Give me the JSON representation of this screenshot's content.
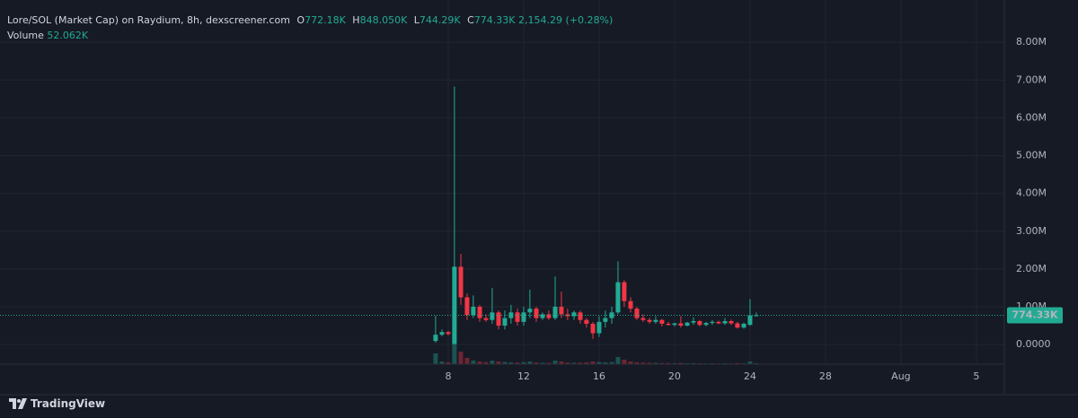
{
  "chart_data": {
    "type": "candlestick",
    "title": "Lore/SOL (Market Cap) on Raydium, 8h, dexscreener.com",
    "ohlc_keys": [
      "O",
      "H",
      "L",
      "C"
    ],
    "ohlc_labels": [
      "772.18K",
      "848.050K",
      "744.29K",
      "774.33K"
    ],
    "change_label": "2,154.29 (+0.28%)",
    "volume_name": "Volume",
    "volume_label": "52.062K",
    "last_price_label": "774.33K",
    "watermark": "TradingView",
    "up_color": "#22ab94",
    "down_color": "#f23645",
    "grid": true,
    "xlim": [
      -15.76,
      37.48
    ],
    "xticks": [
      8,
      12,
      16,
      20,
      24,
      28,
      {
        "value": 32,
        "label": "Aug"
      },
      {
        "value": 36,
        "label": "5"
      }
    ],
    "ylim": [
      -520000,
      9120000
    ],
    "yticks": [
      {
        "value": 0,
        "label": "0.0000"
      },
      {
        "value": 1000000,
        "label": "1.00M"
      },
      {
        "value": 2000000,
        "label": "2.00M"
      },
      {
        "value": 3000000,
        "label": "3.00M"
      },
      {
        "value": 4000000,
        "label": "4.00M"
      },
      {
        "value": 5000000,
        "label": "5.00M"
      },
      {
        "value": 6000000,
        "label": "6.00M"
      },
      {
        "value": 7000000,
        "label": "7.00M"
      },
      {
        "value": 8000000,
        "label": "8.00M"
      }
    ],
    "volume_ylim": [
      0,
      4000000
    ],
    "x": [
      7.33,
      7.67,
      8,
      8.33,
      8.67,
      9,
      9.33,
      9.67,
      10,
      10.33,
      10.67,
      11,
      11.33,
      11.67,
      12,
      12.33,
      12.67,
      13,
      13.33,
      13.67,
      14,
      14.33,
      14.67,
      15,
      15.33,
      15.67,
      16,
      16.33,
      16.67,
      17,
      17.33,
      17.67,
      18,
      18.33,
      18.67,
      19,
      19.33,
      19.67,
      20,
      20.33,
      20.67,
      21,
      21.33,
      21.67,
      22,
      22.33,
      22.67,
      23,
      23.33,
      23.67,
      24,
      24.33
    ],
    "open": [
      95000,
      260000,
      330000,
      20000,
      2060000,
      1250000,
      780000,
      1000000,
      700000,
      650000,
      850000,
      500000,
      700000,
      850000,
      600000,
      850000,
      950000,
      700000,
      800000,
      700000,
      1000000,
      800000,
      750000,
      850000,
      650000,
      550000,
      300000,
      600000,
      700000,
      850000,
      1650000,
      1150000,
      950000,
      700000,
      650000,
      600000,
      650000,
      550000,
      520000,
      560000,
      500000,
      580000,
      620000,
      520000,
      570000,
      600000,
      560000,
      620000,
      560000,
      450000,
      520000,
      772180
    ],
    "high": [
      760000,
      400000,
      360000,
      6830000,
      2400000,
      1350000,
      1300000,
      1050000,
      800000,
      1500000,
      900000,
      900000,
      1050000,
      950000,
      1000000,
      1450000,
      1000000,
      850000,
      900000,
      1800000,
      1400000,
      950000,
      900000,
      900000,
      700000,
      600000,
      750000,
      900000,
      1000000,
      2200000,
      1700000,
      1250000,
      1000000,
      800000,
      700000,
      750000,
      680000,
      600000,
      580000,
      750000,
      600000,
      720000,
      650000,
      600000,
      650000,
      630000,
      700000,
      660000,
      600000,
      580000,
      1200000,
      848050
    ],
    "low": [
      50000,
      220000,
      240000,
      0,
      1050000,
      650000,
      700000,
      600000,
      600000,
      550000,
      400000,
      400000,
      550000,
      500000,
      500000,
      700000,
      600000,
      650000,
      650000,
      650000,
      700000,
      650000,
      650000,
      550000,
      450000,
      150000,
      200000,
      450000,
      550000,
      800000,
      1000000,
      850000,
      650000,
      600000,
      550000,
      550000,
      480000,
      500000,
      480000,
      450000,
      480000,
      520000,
      480000,
      480000,
      520000,
      540000,
      520000,
      520000,
      420000,
      420000,
      500000,
      744290
    ],
    "close": [
      260000,
      330000,
      280000,
      2060000,
      1250000,
      780000,
      1000000,
      700000,
      650000,
      850000,
      500000,
      700000,
      850000,
      600000,
      850000,
      950000,
      700000,
      800000,
      700000,
      1000000,
      800000,
      750000,
      850000,
      650000,
      550000,
      300000,
      600000,
      700000,
      850000,
      1650000,
      1150000,
      950000,
      700000,
      650000,
      600000,
      650000,
      550000,
      520000,
      560000,
      500000,
      580000,
      620000,
      520000,
      570000,
      600000,
      560000,
      620000,
      560000,
      450000,
      550000,
      770000,
      774330
    ],
    "volume": [
      600000,
      150000,
      100000,
      1800000,
      700000,
      350000,
      200000,
      150000,
      120000,
      200000,
      150000,
      120000,
      100000,
      90000,
      110000,
      150000,
      90000,
      80000,
      70000,
      200000,
      150000,
      90000,
      80000,
      90000,
      100000,
      150000,
      120000,
      100000,
      120000,
      400000,
      250000,
      150000,
      100000,
      90000,
      80000,
      70000,
      60000,
      60000,
      50000,
      70000,
      50000,
      60000,
      50000,
      40000,
      50000,
      40000,
      50000,
      45000,
      60000,
      50000,
      150000,
      52062
    ]
  }
}
